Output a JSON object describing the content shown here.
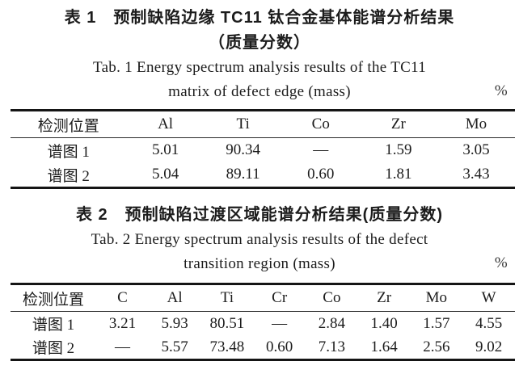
{
  "table1": {
    "title_zh_line1": "表 1　预制缺陷边缘 TC11 钛合金基体能谱分析结果",
    "title_zh_line2": "（质量分数）",
    "title_en_line1": "Tab. 1  Energy spectrum analysis results of the TC11",
    "title_en_line2": "matrix of defect edge (mass)",
    "unit": "%",
    "columns": [
      "检测位置",
      "Al",
      "Ti",
      "Co",
      "Zr",
      "Mo"
    ],
    "rows": [
      {
        "label": "谱图 1",
        "values": [
          "5.01",
          "90.34",
          "—",
          "1.59",
          "3.05"
        ]
      },
      {
        "label": "谱图 2",
        "values": [
          "5.04",
          "89.11",
          "0.60",
          "1.81",
          "3.43"
        ]
      }
    ]
  },
  "table2": {
    "title_zh_line1": "表 2　预制缺陷过渡区域能谱分析结果(质量分数)",
    "title_en_line1": "Tab. 2  Energy spectrum analysis results of the defect",
    "title_en_line2": "transition region (mass)",
    "unit": "%",
    "columns": [
      "检测位置",
      "C",
      "Al",
      "Ti",
      "Cr",
      "Co",
      "Zr",
      "Mo",
      "W"
    ],
    "rows": [
      {
        "label": "谱图 1",
        "values": [
          "3.21",
          "5.93",
          "80.51",
          "—",
          "2.84",
          "1.40",
          "1.57",
          "4.55"
        ]
      },
      {
        "label": "谱图 2",
        "values": [
          "—",
          "5.57",
          "73.48",
          "0.60",
          "7.13",
          "1.64",
          "2.56",
          "9.02"
        ]
      }
    ]
  },
  "chart_data": [
    {
      "type": "table",
      "title": "表 1 预制缺陷边缘 TC11 钛合金基体能谱分析结果（质量分数） / Tab. 1 Energy spectrum analysis results of the TC11 matrix of defect edge (mass) %",
      "columns": [
        "检测位置",
        "Al",
        "Ti",
        "Co",
        "Zr",
        "Mo"
      ],
      "rows": [
        [
          "谱图 1",
          5.01,
          90.34,
          null,
          1.59,
          3.05
        ],
        [
          "谱图 2",
          5.04,
          89.11,
          0.6,
          1.81,
          3.43
        ]
      ]
    },
    {
      "type": "table",
      "title": "表 2 预制缺陷过渡区域能谱分析结果(质量分数) / Tab. 2 Energy spectrum analysis results of the defect transition region (mass) %",
      "columns": [
        "检测位置",
        "C",
        "Al",
        "Ti",
        "Cr",
        "Co",
        "Zr",
        "Mo",
        "W"
      ],
      "rows": [
        [
          "谱图 1",
          3.21,
          5.93,
          80.51,
          null,
          2.84,
          1.4,
          1.57,
          4.55
        ],
        [
          "谱图 2",
          null,
          5.57,
          73.48,
          0.6,
          7.13,
          1.64,
          2.56,
          9.02
        ]
      ]
    }
  ]
}
